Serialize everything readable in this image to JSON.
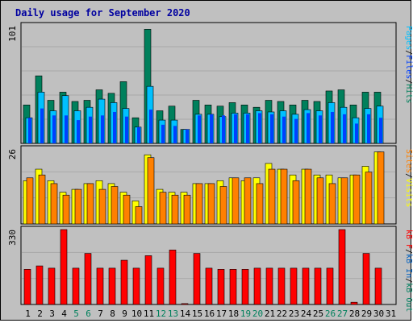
{
  "title": "Daily usage for September 2020",
  "colors": {
    "background": "#c0c0c0",
    "panel": "#c0c0c0",
    "grid": "#a8a8a8",
    "title": "#0000a0",
    "hits": "#00805c",
    "files": "#0040ff",
    "pages": "#00c0ff",
    "visits": "#ffff00",
    "sites": "#ff8000",
    "kb_out": "#008060",
    "kb_in": "#0060c0",
    "kb_f": "#ff0000",
    "weekend_day": "#00805c",
    "weekday": "#000000"
  },
  "chart_data": [
    {
      "type": "bar",
      "panel": "hits-files-pages",
      "y_max_label": "101",
      "ylim": [
        0,
        101
      ],
      "legend": [
        {
          "key": "pages",
          "label": "Pages"
        },
        {
          "key": "files",
          "label": "Files"
        },
        {
          "key": "hits",
          "label": "Hits"
        }
      ],
      "categories": [
        "1",
        "2",
        "3",
        "4",
        "5",
        "6",
        "7",
        "8",
        "9",
        "10",
        "11",
        "12",
        "13",
        "14",
        "15",
        "16",
        "17",
        "18",
        "19",
        "20",
        "21",
        "22",
        "23",
        "24",
        "25",
        "26",
        "27",
        "28",
        "29",
        "30",
        "31"
      ],
      "series": [
        {
          "name": "Hits",
          "key": "hits",
          "values": [
            33,
            58,
            37,
            44,
            36,
            37,
            46,
            43,
            53,
            22,
            98,
            28,
            32,
            12,
            37,
            33,
            32,
            35,
            33,
            31,
            37,
            36,
            33,
            37,
            36,
            45,
            46,
            33,
            44,
            44,
            null
          ]
        },
        {
          "name": "Files",
          "key": "files",
          "values": [
            22,
            30,
            24,
            24,
            20,
            23,
            24,
            27,
            23,
            14,
            29,
            16,
            15,
            12,
            24,
            25,
            24,
            25,
            25,
            26,
            25,
            23,
            21,
            26,
            24,
            27,
            25,
            17,
            25,
            22,
            null
          ]
        },
        {
          "name": "Pages",
          "key": "pages",
          "values": [
            22,
            44,
            28,
            41,
            28,
            31,
            38,
            35,
            30,
            14,
            49,
            20,
            20,
            12,
            25,
            25,
            23,
            26,
            26,
            28,
            27,
            28,
            25,
            29,
            28,
            35,
            31,
            22,
            30,
            32,
            null
          ]
        }
      ]
    },
    {
      "type": "bar",
      "panel": "visits-sites",
      "y_max_label": "26",
      "ylim": [
        0,
        26
      ],
      "legend": [
        {
          "key": "sites",
          "label": "Sites"
        },
        {
          "key": "visits",
          "label": "Visits"
        }
      ],
      "categories": [
        "1",
        "2",
        "3",
        "4",
        "5",
        "6",
        "7",
        "8",
        "9",
        "10",
        "11",
        "12",
        "13",
        "14",
        "15",
        "16",
        "17",
        "18",
        "19",
        "20",
        "21",
        "22",
        "23",
        "24",
        "25",
        "26",
        "27",
        "28",
        "29",
        "30",
        "31"
      ],
      "series": [
        {
          "name": "Visits",
          "key": "visits",
          "values": [
            15,
            19,
            15,
            11,
            12,
            14,
            15,
            14,
            11,
            8,
            24,
            12,
            11,
            11,
            14,
            14,
            15,
            16,
            15,
            16,
            21,
            19,
            17,
            19,
            17,
            17,
            16,
            17,
            20,
            25,
            null
          ]
        },
        {
          "name": "Sites",
          "key": "sites",
          "values": [
            16,
            17,
            14,
            10,
            12,
            14,
            12,
            13,
            10,
            6,
            23,
            11,
            10,
            10,
            14,
            14,
            13,
            16,
            16,
            14,
            19,
            19,
            15,
            19,
            16,
            14,
            16,
            17,
            18,
            25,
            null
          ]
        }
      ]
    },
    {
      "type": "bar",
      "panel": "kbf-kbin-kbout",
      "y_max_label": "330",
      "ylim": [
        0,
        330
      ],
      "legend": [
        {
          "key": "kb_f",
          "label": "kB F"
        },
        {
          "key": "kb_in",
          "label": "kB In"
        },
        {
          "key": "kb_out",
          "label": "kB Out"
        }
      ],
      "categories": [
        "1",
        "2",
        "3",
        "4",
        "5",
        "6",
        "7",
        "8",
        "9",
        "10",
        "11",
        "12",
        "13",
        "14",
        "15",
        "16",
        "17",
        "18",
        "19",
        "20",
        "21",
        "22",
        "23",
        "24",
        "25",
        "26",
        "27",
        "28",
        "29",
        "30",
        "31"
      ],
      "series": [
        {
          "name": "kB F",
          "key": "kb_f",
          "values": [
            155,
            170,
            160,
            330,
            160,
            225,
            160,
            160,
            195,
            160,
            215,
            160,
            240,
            4,
            225,
            160,
            155,
            155,
            155,
            160,
            160,
            160,
            160,
            160,
            160,
            160,
            330,
            10,
            225,
            160,
            null
          ]
        }
      ]
    }
  ],
  "x_axis": {
    "labels": [
      "1",
      "2",
      "3",
      "4",
      "5",
      "6",
      "7",
      "8",
      "9",
      "10",
      "11",
      "12",
      "13",
      "14",
      "15",
      "16",
      "17",
      "18",
      "19",
      "20",
      "21",
      "22",
      "23",
      "24",
      "25",
      "26",
      "27",
      "28",
      "29",
      "30",
      "31"
    ],
    "weekend": [
      5,
      6,
      12,
      13,
      19,
      20,
      26,
      27
    ]
  }
}
